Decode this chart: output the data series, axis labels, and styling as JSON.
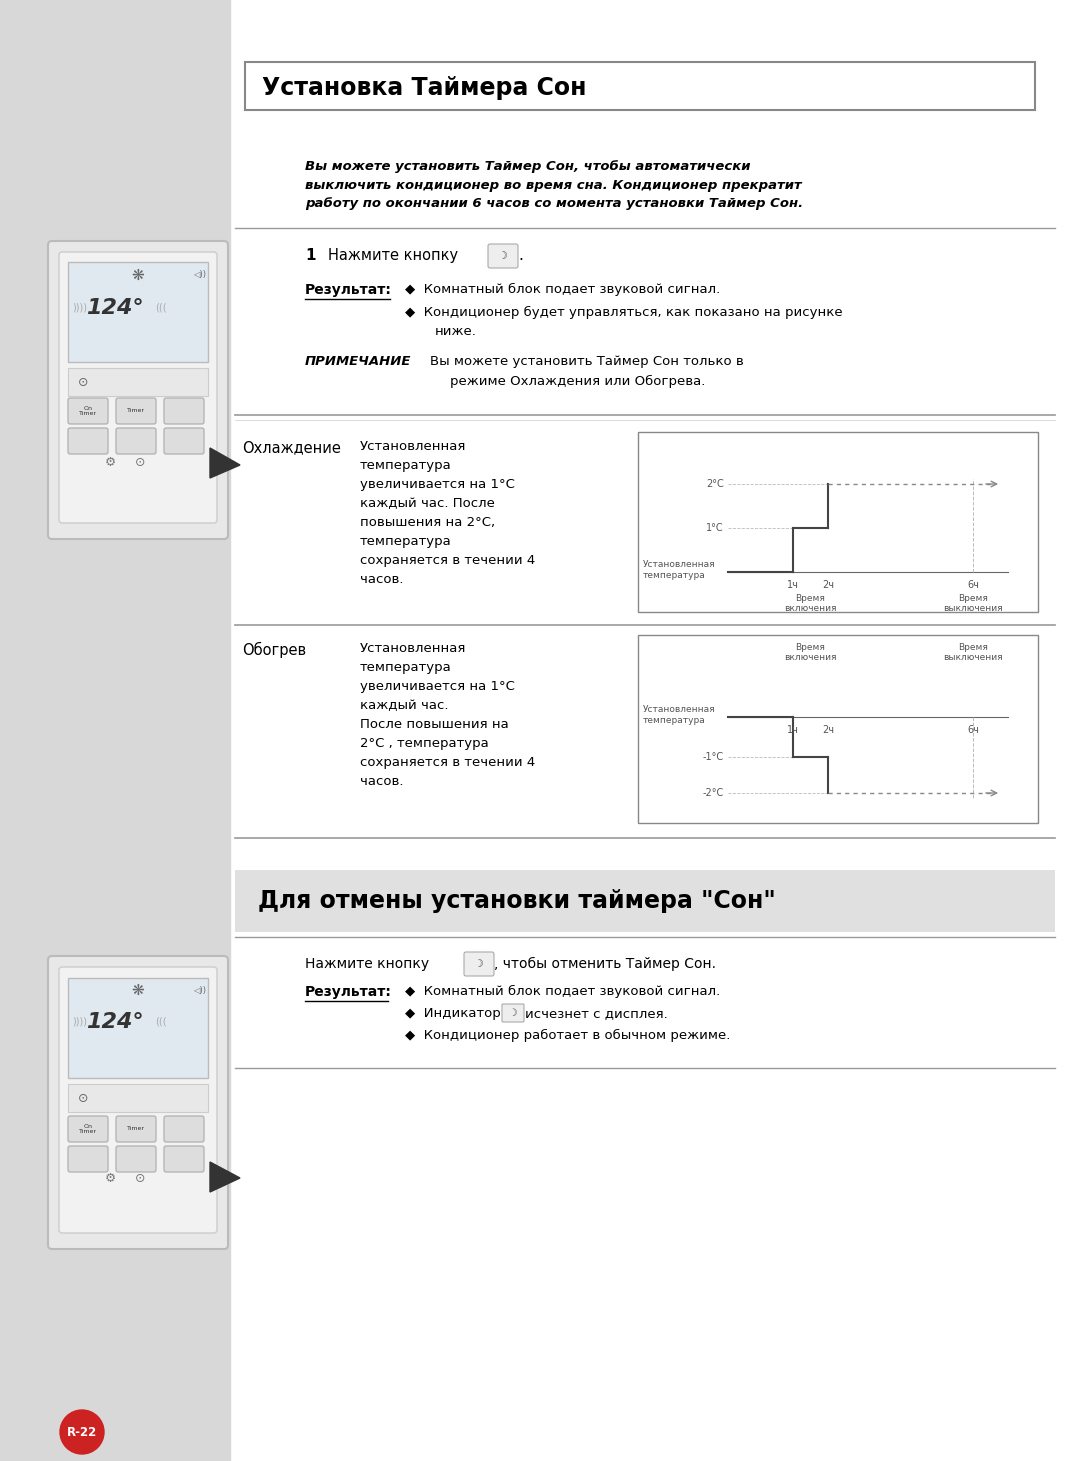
{
  "bg_color": "#f0f0f0",
  "main_bg": "#ffffff",
  "sidebar_color": "#d8d8d8",
  "title_box_text": "Установка Таймера Сон",
  "title_box_bg": "#ffffff",
  "title_box_border": "#888888",
  "intro_text": "Вы можете установить Таймер Сон, чтобы автоматически\nвыключить кондиционер во время сна. Кондиционер прекратит\nработу по окончании 6 часов со момента установки Таймер Сон.",
  "cooling_label": "Охлаждение",
  "cooling_text": "Установленная\nтемпература\nувеличивается на 1°С\nкаждый час. После\nповышения на 2°С,\nтемпература\nсохраняется в течении 4\nчасов.",
  "heating_label": "Обогрев",
  "heating_text": "Установленная\nтемпература\nувеличивается на 1°С\nкаждый час.\nПосле повышения на\n2°С , температура\nсохраняется в течении 4\nчасов.",
  "section2_title": "Для отмены установки таймера \"Сон\"",
  "page_num": "R-22"
}
